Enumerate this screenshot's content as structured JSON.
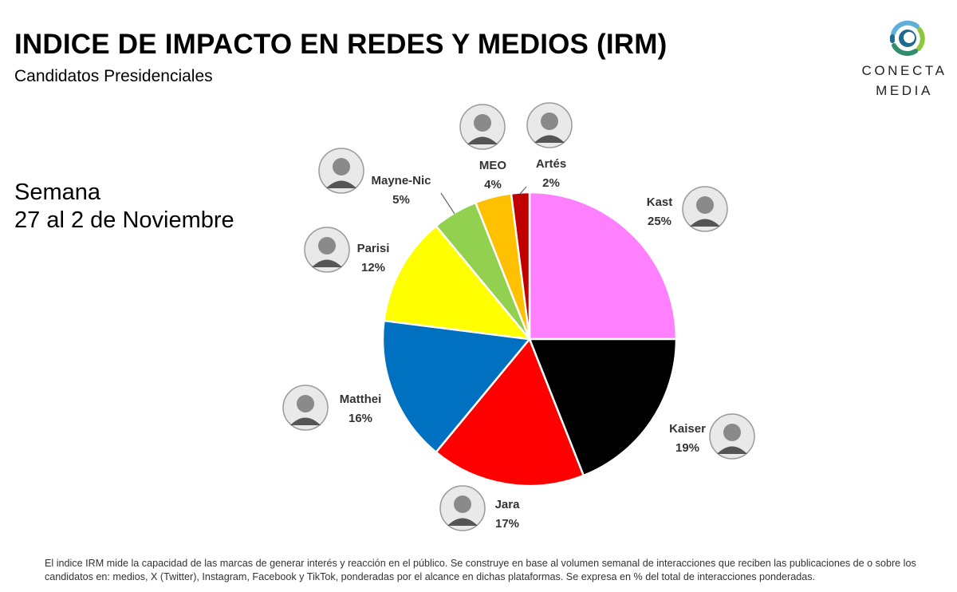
{
  "header": {
    "title": "INDICE DE IMPACTO EN REDES Y MEDIOS (IRM)",
    "subtitle": "Candidatos Presidenciales"
  },
  "period": {
    "line1": "Semana",
    "line2": "27 al 2 de Noviembre"
  },
  "logo": {
    "line1": "CONECTA",
    "line2": "MEDIA",
    "colors": [
      "#1e6b8f",
      "#5fb0d8",
      "#8cc63f",
      "#2f8f6b"
    ]
  },
  "chart_data": {
    "type": "pie",
    "slices": [
      {
        "name": "Kast",
        "value": 25,
        "label": "25%",
        "color": "#ff80ff"
      },
      {
        "name": "Kaiser",
        "value": 19,
        "label": "19%",
        "color": "#000000"
      },
      {
        "name": "Jara",
        "value": 17,
        "label": "17%",
        "color": "#ff0000"
      },
      {
        "name": "Matthei",
        "value": 16,
        "label": "16%",
        "color": "#0070c0"
      },
      {
        "name": "Parisi",
        "value": 12,
        "label": "12%",
        "color": "#ffff00"
      },
      {
        "name": "Mayne-Nic",
        "value": 5,
        "label": "5%",
        "color": "#92d050"
      },
      {
        "name": "MEO",
        "value": 4,
        "label": "4%",
        "color": "#ffc000"
      },
      {
        "name": "Artés",
        "value": 2,
        "label": "2%",
        "color": "#c00000"
      }
    ]
  },
  "footnote": "El indice IRM mide la capacidad de las marcas de generar interés y reacción en el público. Se construye en base al volumen semanal de interacciones que reciben las publicaciones de o sobre los candidatos en: medios, X (Twitter), Instagram, Facebook y TikTok, ponderadas por el alcance en dichas plataformas. Se expresa en % del total de interacciones ponderadas."
}
